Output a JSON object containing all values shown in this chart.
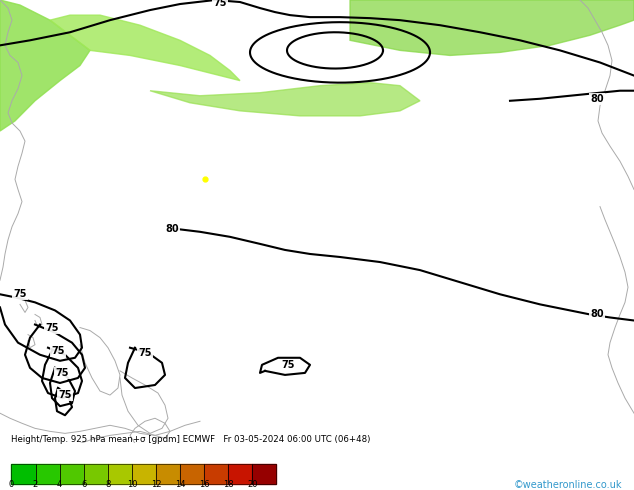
{
  "title": "Height/Temp. 925 hPa mean+σ [gpdm] ECMWF   Fr 03-05-2024 06:00 UTC (06+48)",
  "colorbar_ticks": [
    0,
    2,
    4,
    6,
    8,
    10,
    12,
    14,
    16,
    18,
    20
  ],
  "colorbar_colors": [
    "#00be00",
    "#28c800",
    "#50c800",
    "#78c800",
    "#a8c800",
    "#c8b400",
    "#c88c00",
    "#c86400",
    "#c83c00",
    "#c81400",
    "#960000"
  ],
  "watermark": "©weatheronline.co.uk",
  "fig_width": 6.34,
  "fig_height": 4.9,
  "dpi": 100,
  "map_green": "#3db83d",
  "map_light_green": "#a0e060",
  "map_mid_green": "#78d040"
}
